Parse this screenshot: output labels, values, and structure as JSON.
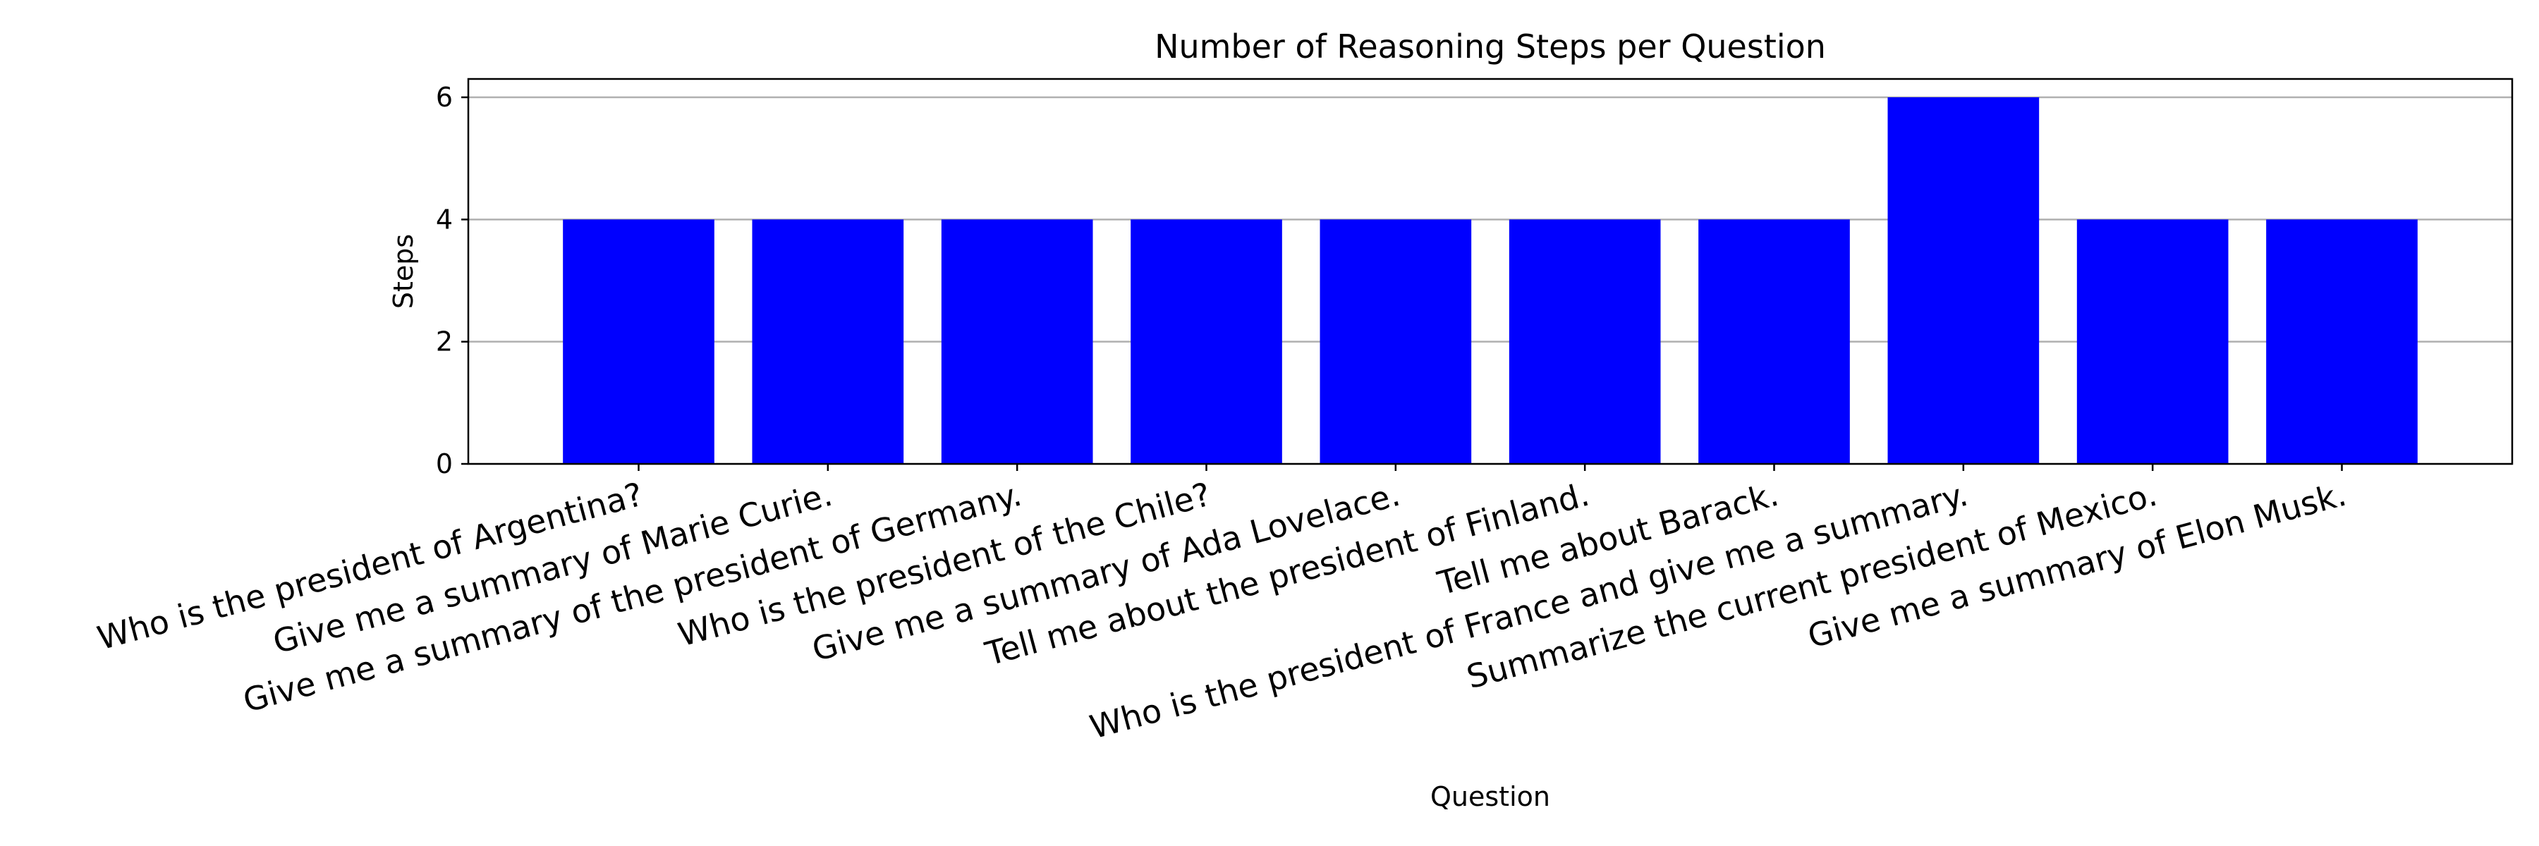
{
  "chart_data": {
    "type": "bar",
    "title": "Number of Reasoning Steps per Question",
    "xlabel": "Question",
    "ylabel": "Steps",
    "categories": [
      "Who is the president of Argentina?",
      "Give me a summary of Marie Curie.",
      "Give me a summary of the president of Germany.",
      "Who is the president of the Chile?",
      "Give me a summary of Ada Lovelace.",
      "Tell me about the president of Finland.",
      "Tell me about Barack.",
      "Who is the president of France and give me a summary.",
      "Summarize the current president of Mexico.",
      "Give me a summary of Elon Musk."
    ],
    "values": [
      4,
      4,
      4,
      4,
      4,
      4,
      4,
      6,
      4,
      4
    ],
    "ylim": [
      0,
      6.3
    ],
    "yticks": [
      0,
      2,
      4,
      6
    ],
    "grid": "y-axis",
    "bar_color": "#0000ff",
    "grid_color": "#b0b0b0"
  }
}
